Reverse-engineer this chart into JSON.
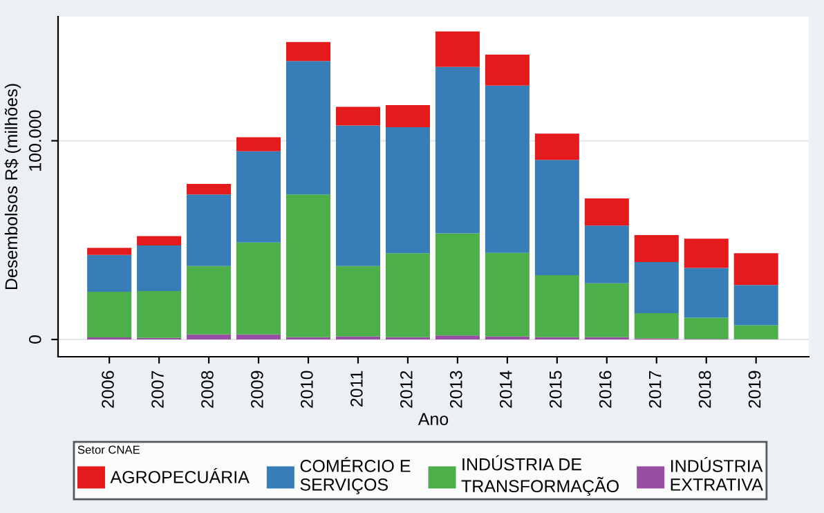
{
  "chart_data": {
    "type": "bar",
    "stacked": true,
    "xlabel": "Ano",
    "ylabel": "Desembolsos R$ (milhões)",
    "legend_title": "Setor CNAE",
    "categories": [
      "2006",
      "2007",
      "2008",
      "2009",
      "2010",
      "2011",
      "2012",
      "2013",
      "2014",
      "2015",
      "2016",
      "2017",
      "2018",
      "2019"
    ],
    "series": [
      {
        "name": "INDÚSTRIA\nEXTRATIVA",
        "color": "#984ea3",
        "values": [
          1000,
          800,
          2500,
          2500,
          1100,
          1500,
          1100,
          2000,
          1500,
          1100,
          1100,
          500,
          300,
          200
        ]
      },
      {
        "name": "INDÚSTRIA DE\nTRANSFORMAÇÃO",
        "color": "#4daf4a",
        "values": [
          23000,
          23600,
          34500,
          46300,
          71900,
          35500,
          42300,
          51400,
          42100,
          31300,
          27200,
          12700,
          10700,
          6900
        ]
      },
      {
        "name": "COMÉRCIO E\nSERVIÇOS",
        "color": "#377eb8",
        "values": [
          18500,
          22900,
          36000,
          45900,
          67100,
          70700,
          63400,
          83800,
          84200,
          58000,
          29000,
          25800,
          25000,
          20300
        ]
      },
      {
        "name": "AGROPECUÁRIA",
        "color": "#e41a1c",
        "values": [
          3600,
          4700,
          5300,
          7100,
          9600,
          9400,
          11200,
          17800,
          15600,
          13200,
          13700,
          13500,
          14700,
          16000
        ]
      }
    ],
    "ylim": [
      -8700,
      162500
    ],
    "yticks": [
      0,
      {
        "value": 100000,
        "label": "100.000"
      }
    ],
    "grid": "y",
    "legend": "bottom"
  }
}
